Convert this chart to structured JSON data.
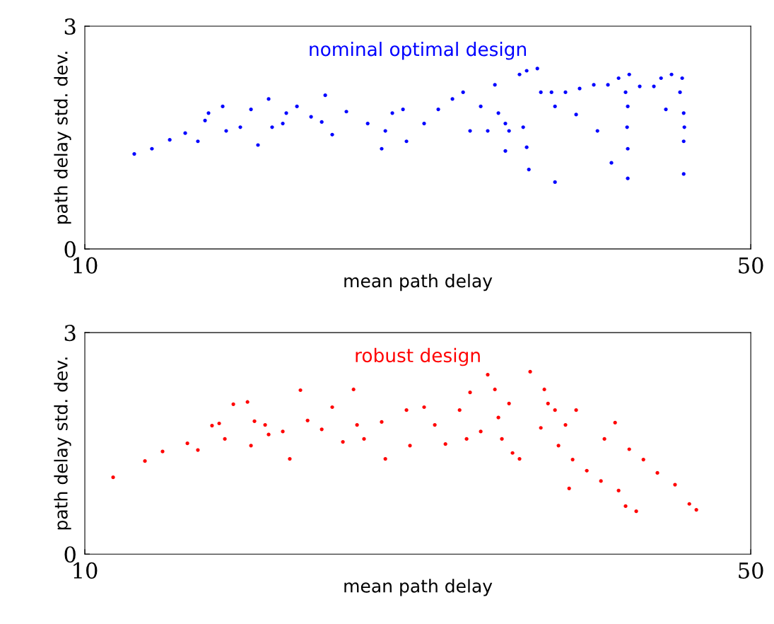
{
  "chart_data": [
    {
      "type": "scatter",
      "title": "nominal optimal design",
      "xlabel": "mean path delay",
      "ylabel": "path delay std. dev.",
      "xlim": [
        10,
        50
      ],
      "ylim": [
        0,
        3
      ],
      "xticks": [
        10,
        50
      ],
      "yticks": [
        0,
        3
      ],
      "grid": false,
      "marker": "circle",
      "series": [
        {
          "color": "#0000ff",
          "x": [
            12.97,
            14.03,
            15.1,
            16.03,
            16.79,
            17.22,
            17.43,
            18.28,
            18.49,
            19.34,
            19.98,
            20.4,
            21.04,
            21.25,
            21.89,
            22.1,
            22.74,
            23.59,
            24.23,
            24.44,
            24.86,
            25.71,
            26.99,
            27.83,
            28.05,
            28.47,
            29.11,
            29.32,
            30.38,
            31.23,
            32.08,
            32.72,
            33.14,
            33.78,
            34.2,
            34.63,
            34.84,
            35.26,
            35.48,
            35.26,
            36.11,
            36.54,
            36.33,
            36.54,
            36.67,
            37.18,
            37.39,
            38.03,
            38.24,
            38.24,
            38.87,
            39.51,
            39.72,
            40.57,
            40.79,
            41.42,
            41.63,
            42.06,
            42.48,
            42.57,
            42.61,
            42.61,
            42.7,
            42.61,
            43.33,
            44.18,
            44.61,
            44.9,
            45.24,
            45.88,
            45.97,
            45.97,
            45.97,
            45.75,
            46.01
          ],
          "values": [
            1.28,
            1.35,
            1.47,
            1.56,
            1.45,
            1.73,
            1.83,
            1.92,
            1.59,
            1.64,
            1.88,
            1.4,
            2.02,
            1.64,
            1.69,
            1.83,
            1.92,
            1.78,
            1.71,
            2.07,
            1.54,
            1.85,
            1.69,
            1.35,
            1.59,
            1.83,
            1.88,
            1.45,
            1.69,
            1.88,
            2.02,
            2.11,
            1.59,
            1.92,
            1.59,
            2.21,
            1.83,
            1.69,
            1.59,
            1.32,
            2.35,
            2.4,
            1.64,
            1.37,
            1.07,
            2.43,
            2.11,
            2.11,
            1.92,
            0.9,
            2.11,
            1.81,
            2.16,
            2.21,
            1.59,
            2.21,
            1.16,
            2.3,
            2.11,
            1.64,
            1.35,
            0.95,
            2.35,
            1.92,
            2.19,
            2.19,
            2.3,
            1.88,
            2.35,
            2.3,
            1.83,
            1.45,
            1.01,
            2.11,
            1.64
          ]
        }
      ]
    },
    {
      "type": "scatter",
      "title": "robust design",
      "xlabel": "mean path delay",
      "ylabel": "path delay std. dev.",
      "xlim": [
        10,
        50
      ],
      "ylim": [
        0,
        3
      ],
      "xticks": [
        10,
        50
      ],
      "yticks": [
        0,
        3
      ],
      "grid": false,
      "marker": "circle",
      "series": [
        {
          "color": "#ff0000",
          "x": [
            11.7,
            13.61,
            14.67,
            16.16,
            16.79,
            17.64,
            18.07,
            18.41,
            18.92,
            19.77,
            19.98,
            20.19,
            20.83,
            21.04,
            21.89,
            22.31,
            22.95,
            23.38,
            24.23,
            24.86,
            25.5,
            26.14,
            26.35,
            26.77,
            27.83,
            28.05,
            29.32,
            29.53,
            30.38,
            31.02,
            31.66,
            32.51,
            32.93,
            33.14,
            33.78,
            34.2,
            34.63,
            34.84,
            35.05,
            35.48,
            35.69,
            36.11,
            36.75,
            37.39,
            37.82,
            38.24,
            38.45,
            38.87,
            39.09,
            39.3,
            40.15,
            41.0,
            42.06,
            41.21,
            41.85,
            42.48,
            43.12,
            42.7,
            43.55,
            44.39,
            45.45,
            46.31,
            46.73,
            37.6,
            39.51
          ],
          "values": [
            1.04,
            1.26,
            1.39,
            1.5,
            1.41,
            1.74,
            1.77,
            1.56,
            2.03,
            2.06,
            1.47,
            1.8,
            1.75,
            1.62,
            1.66,
            1.29,
            2.22,
            1.81,
            1.69,
            1.99,
            1.52,
            2.23,
            1.75,
            1.56,
            1.79,
            1.29,
            1.95,
            1.47,
            1.99,
            1.75,
            1.49,
            1.95,
            1.56,
            2.19,
            1.66,
            2.43,
            2.23,
            1.85,
            1.56,
            2.04,
            1.37,
            1.29,
            2.47,
            1.71,
            2.04,
            1.95,
            1.47,
            1.75,
            0.89,
            1.28,
            1.13,
            0.99,
            0.86,
            1.56,
            1.78,
            0.65,
            0.58,
            1.42,
            1.28,
            1.1,
            0.94,
            0.68,
            0.6,
            2.23,
            1.95
          ]
        }
      ]
    }
  ]
}
